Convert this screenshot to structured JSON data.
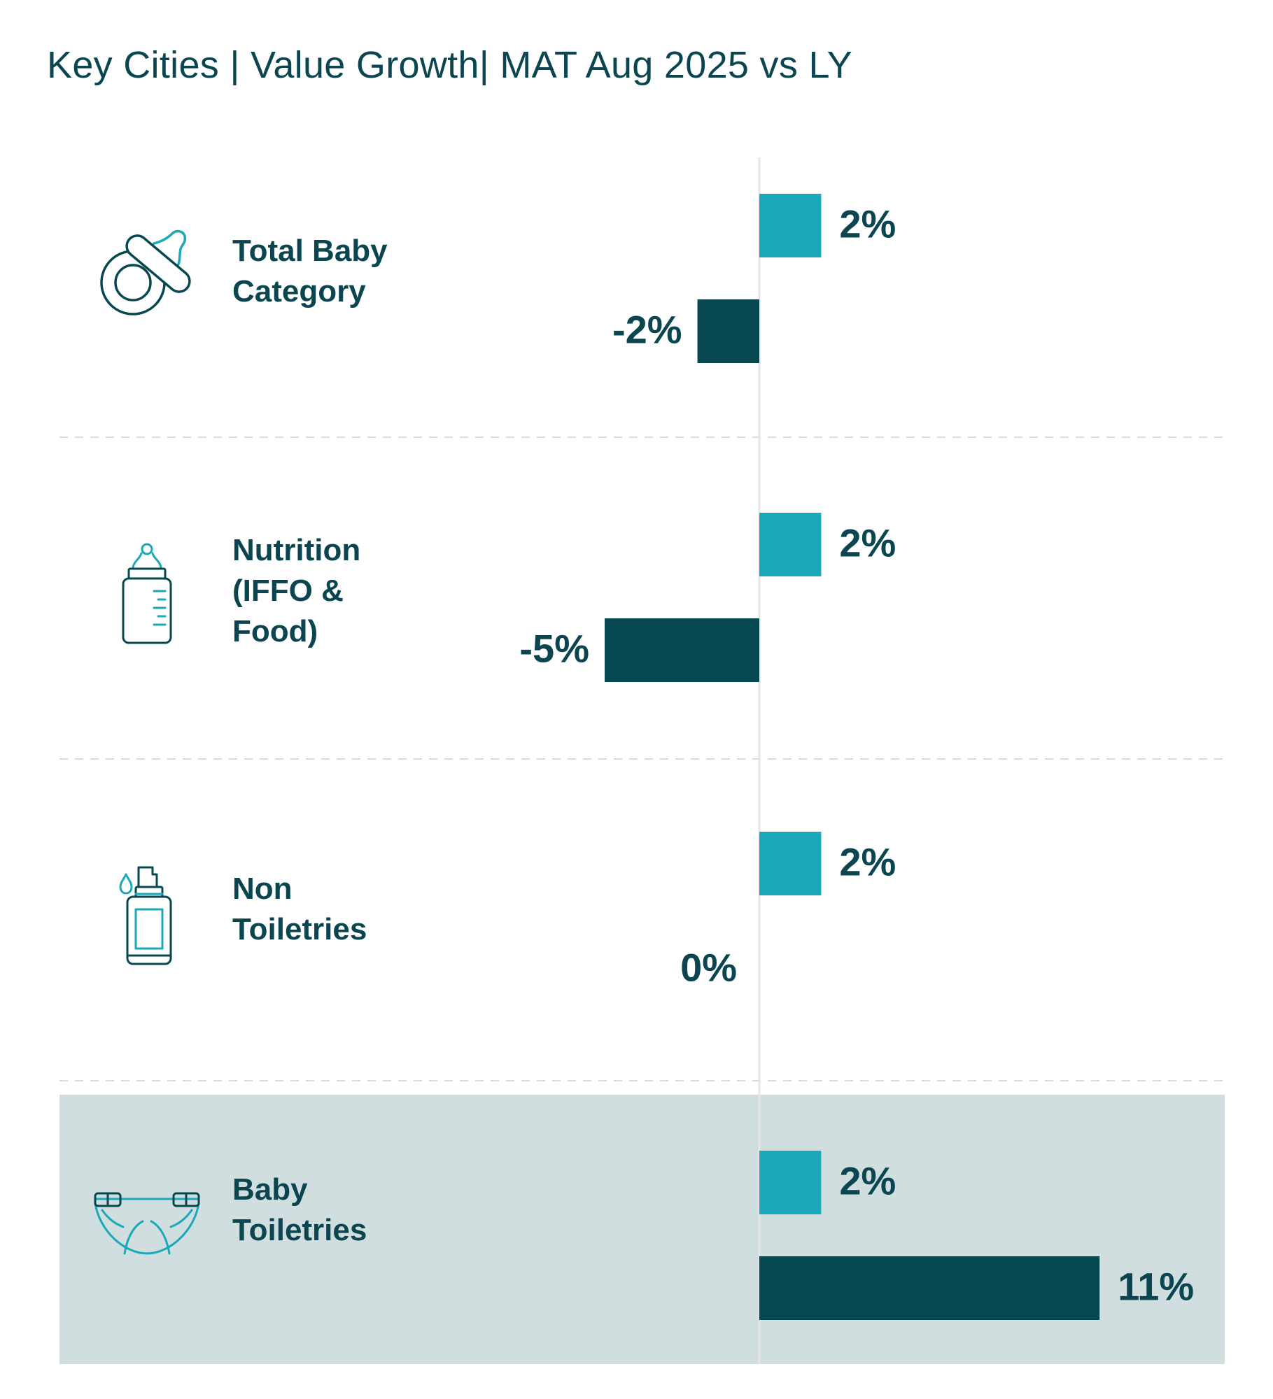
{
  "colors": {
    "series_light": "#1ba8b8",
    "series_dark": "#07474f",
    "text": "#0b4650",
    "highlight_band": "#d0dedf",
    "divider": "#d9dcde",
    "axis": "#e4e6e8"
  },
  "chart_data": {
    "type": "bar",
    "orientation": "horizontal",
    "title": "Key Cities | Value Growth| MAT Aug 2025 vs LY",
    "categories": [
      {
        "lines": [
          "Total Baby",
          "Category"
        ],
        "icon": "pacifier-icon"
      },
      {
        "lines": [
          "Nutrition",
          "(IFFO &",
          "Food)"
        ],
        "icon": "baby-bottle-icon"
      },
      {
        "lines": [
          "Non",
          "Toiletries"
        ],
        "icon": "lotion-pump-bottle-icon"
      },
      {
        "lines": [
          "Baby",
          "Toiletries"
        ],
        "icon": "diaper-icon"
      }
    ],
    "series": [
      {
        "values": [
          2,
          2,
          2,
          2
        ],
        "labels": [
          "2%",
          "2%",
          "2%",
          "2%"
        ],
        "color": "#1ba8b8"
      },
      {
        "values": [
          -2,
          -5,
          0,
          11
        ],
        "labels": [
          "-2%",
          "-5%",
          "0%",
          "11%"
        ],
        "color": "#07474f"
      }
    ],
    "highlighted_category_index": 3,
    "unit": "%",
    "grid": false,
    "legend": "none"
  }
}
